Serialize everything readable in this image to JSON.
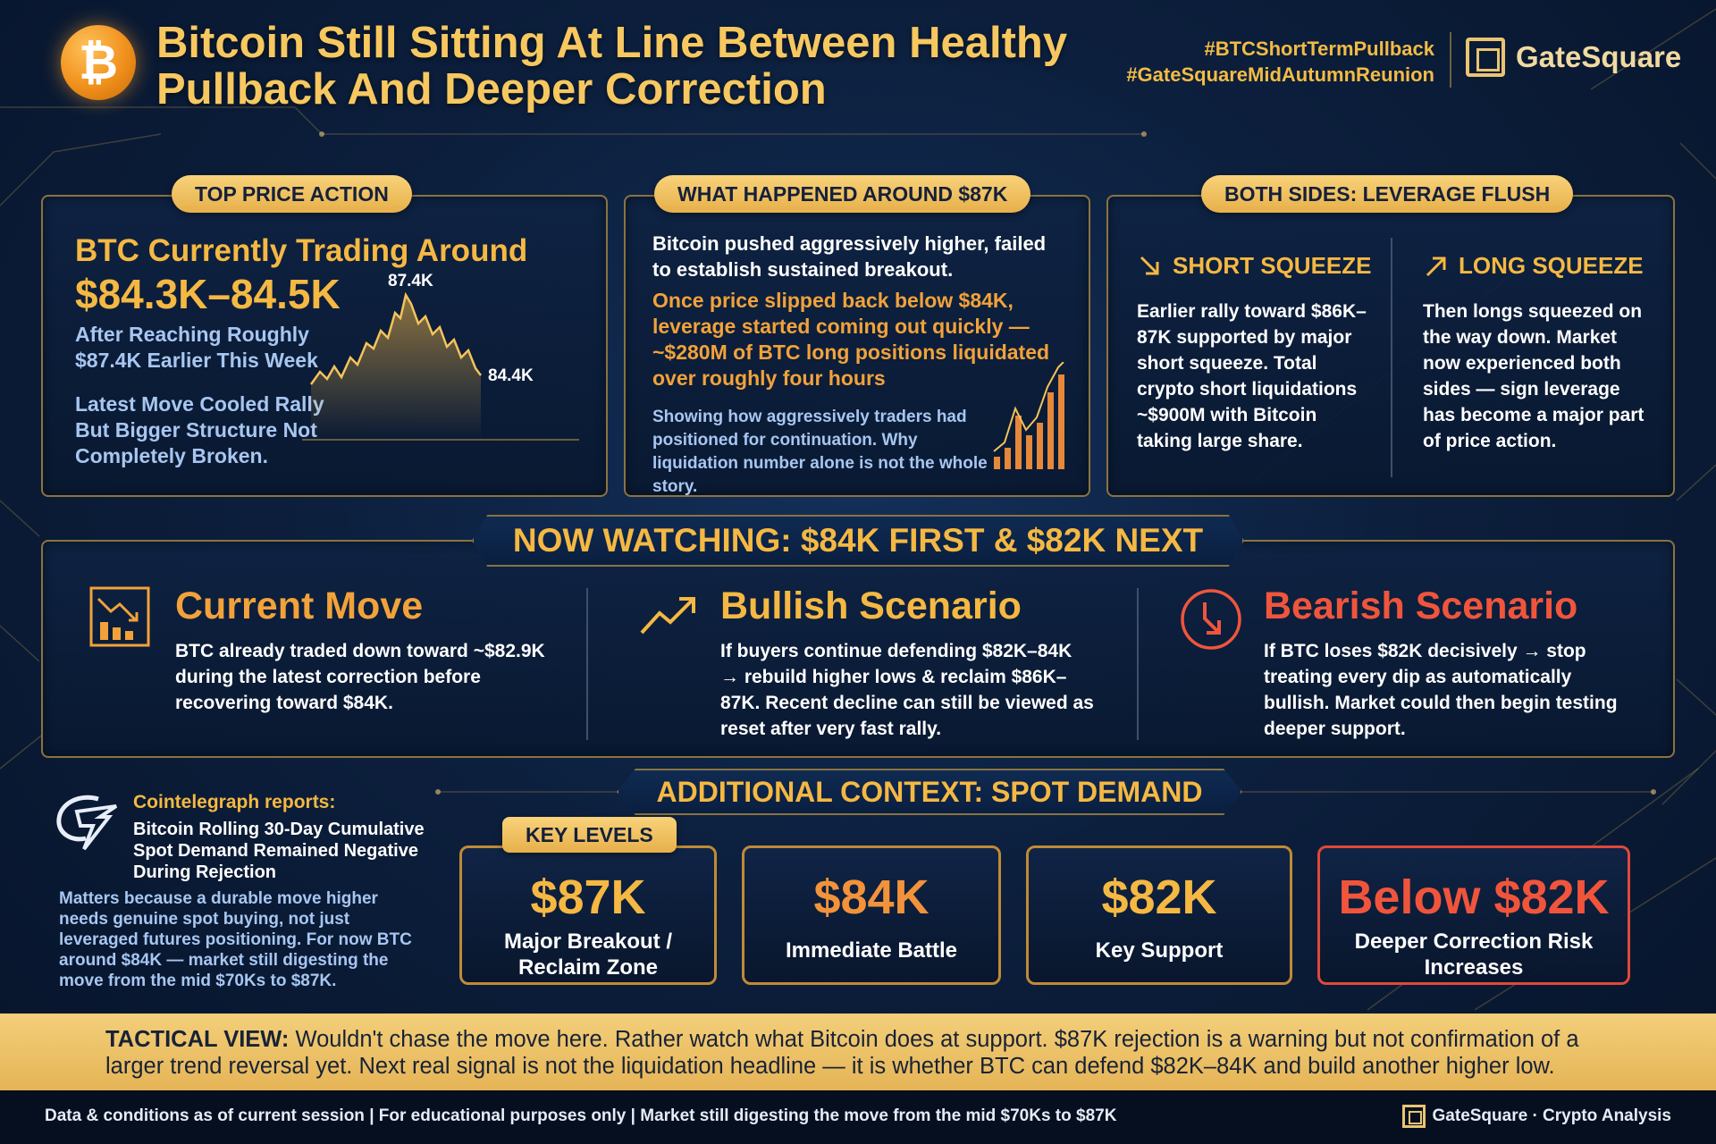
{
  "header": {
    "title_line1": "Bitcoin Still Sitting At Line Between Healthy",
    "title_line2": "Pullback And Deeper Correction",
    "hashtag1": "#BTCShortTermPullback",
    "hashtag2": "#GateSquareMidAutumnReunion",
    "brand": "GateSquare",
    "coin_symbol": "₿"
  },
  "top_price_action": {
    "pill": "TOP PRICE ACTION",
    "heading": "BTC Currently Trading Around",
    "price": "$84.3K–84.5K",
    "after": "After Reaching Roughly $87.4K Earlier This Week",
    "latest": "Latest Move Cooled Rally But Bigger Structure Not Completely Broken.",
    "chart_peak_label": "87.4K",
    "chart_end_label": "84.4K"
  },
  "around_87k": {
    "pill": "WHAT HAPPENED AROUND $87K",
    "p1": "Bitcoin pushed aggressively higher, failed to establish sustained breakout.",
    "p2": "Once price slipped back below $84K, leverage started coming out quickly — ~$280M of BTC long positions liquidated over roughly four hours",
    "p3": "Showing how aggressively traders had positioned for continuation. Why liquidation number alone is not the whole story."
  },
  "leverage_flush": {
    "pill": "BOTH SIDES: LEVERAGE FLUSH",
    "short_title": "SHORT SQUEEZE",
    "short_text": "Earlier rally toward $86K–87K supported by major short squeeze. Total crypto short liquidations ~$900M with Bitcoin taking large share.",
    "long_title": "LONG SQUEEZE",
    "long_text": "Then longs squeezed on the way down. Market now experienced both sides — sign leverage has become a major part of price action."
  },
  "watching": {
    "banner": "NOW WATCHING: $84K FIRST & $82K NEXT",
    "current_title": "Current Move",
    "current_text": "BTC already traded down toward ~$82.9K during the latest correction before recovering toward $84K.",
    "bullish_title": "Bullish Scenario",
    "bullish_text": "If buyers continue defending $82K–84K → rebuild higher lows & reclaim $86K–87K. Recent decline can still be viewed as reset after very fast rally.",
    "bearish_title": "Bearish Scenario",
    "bearish_text": "If BTC loses $82K decisively → stop treating every dip as automatically bullish. Market could then begin testing deeper support."
  },
  "context": {
    "source": "Cointelegraph reports:",
    "headline": "Bitcoin Rolling 30-Day Cumulative Spot Demand Remained Negative During Rejection",
    "body": "Matters because a durable move higher needs genuine spot buying, not just leveraged futures positioning. For now BTC around $84K — market still digesting the move from the mid $70Ks to $87K.",
    "banner": "ADDITIONAL CONTEXT: SPOT DEMAND",
    "key_levels_pill": "KEY LEVELS"
  },
  "levels": [
    {
      "value": "$87K",
      "label": "Major Breakout / Reclaim Zone"
    },
    {
      "value": "$84K",
      "label": "Immediate Battle"
    },
    {
      "value": "$82K",
      "label": "Key Support"
    },
    {
      "value": "Below $82K",
      "label": "Deeper Correction Risk Increases"
    }
  ],
  "tactical": {
    "lead": "TACTICAL VIEW:",
    "text": " Wouldn't chase the move here. Rather watch what Bitcoin does at support. $87K rejection is a warning but not confirmation of a larger trend reversal yet. Next real signal is not the liquidation headline — it is whether BTC can defend $82K–84K and build another higher low."
  },
  "footer": {
    "text": "Data & conditions as of current session  |  For educational purposes only  |  Market still digesting the move from the mid $70Ks to $87K",
    "brand": "GateSquare · Crypto Analysis"
  },
  "colors": {
    "gold": "#f5b842",
    "orange": "#f2a23a",
    "bearish_red": "#f0553c",
    "light_blue": "#a7c6f0",
    "background": "#0c1f3d"
  },
  "icons": [
    "bitcoin-coin-icon",
    "gatesquare-logo-icon",
    "arrow-down-right-icon",
    "arrow-up-right-icon",
    "bar-chart-down-icon",
    "trend-up-icon",
    "circle-arrow-down-icon",
    "cointelegraph-logo-icon"
  ]
}
